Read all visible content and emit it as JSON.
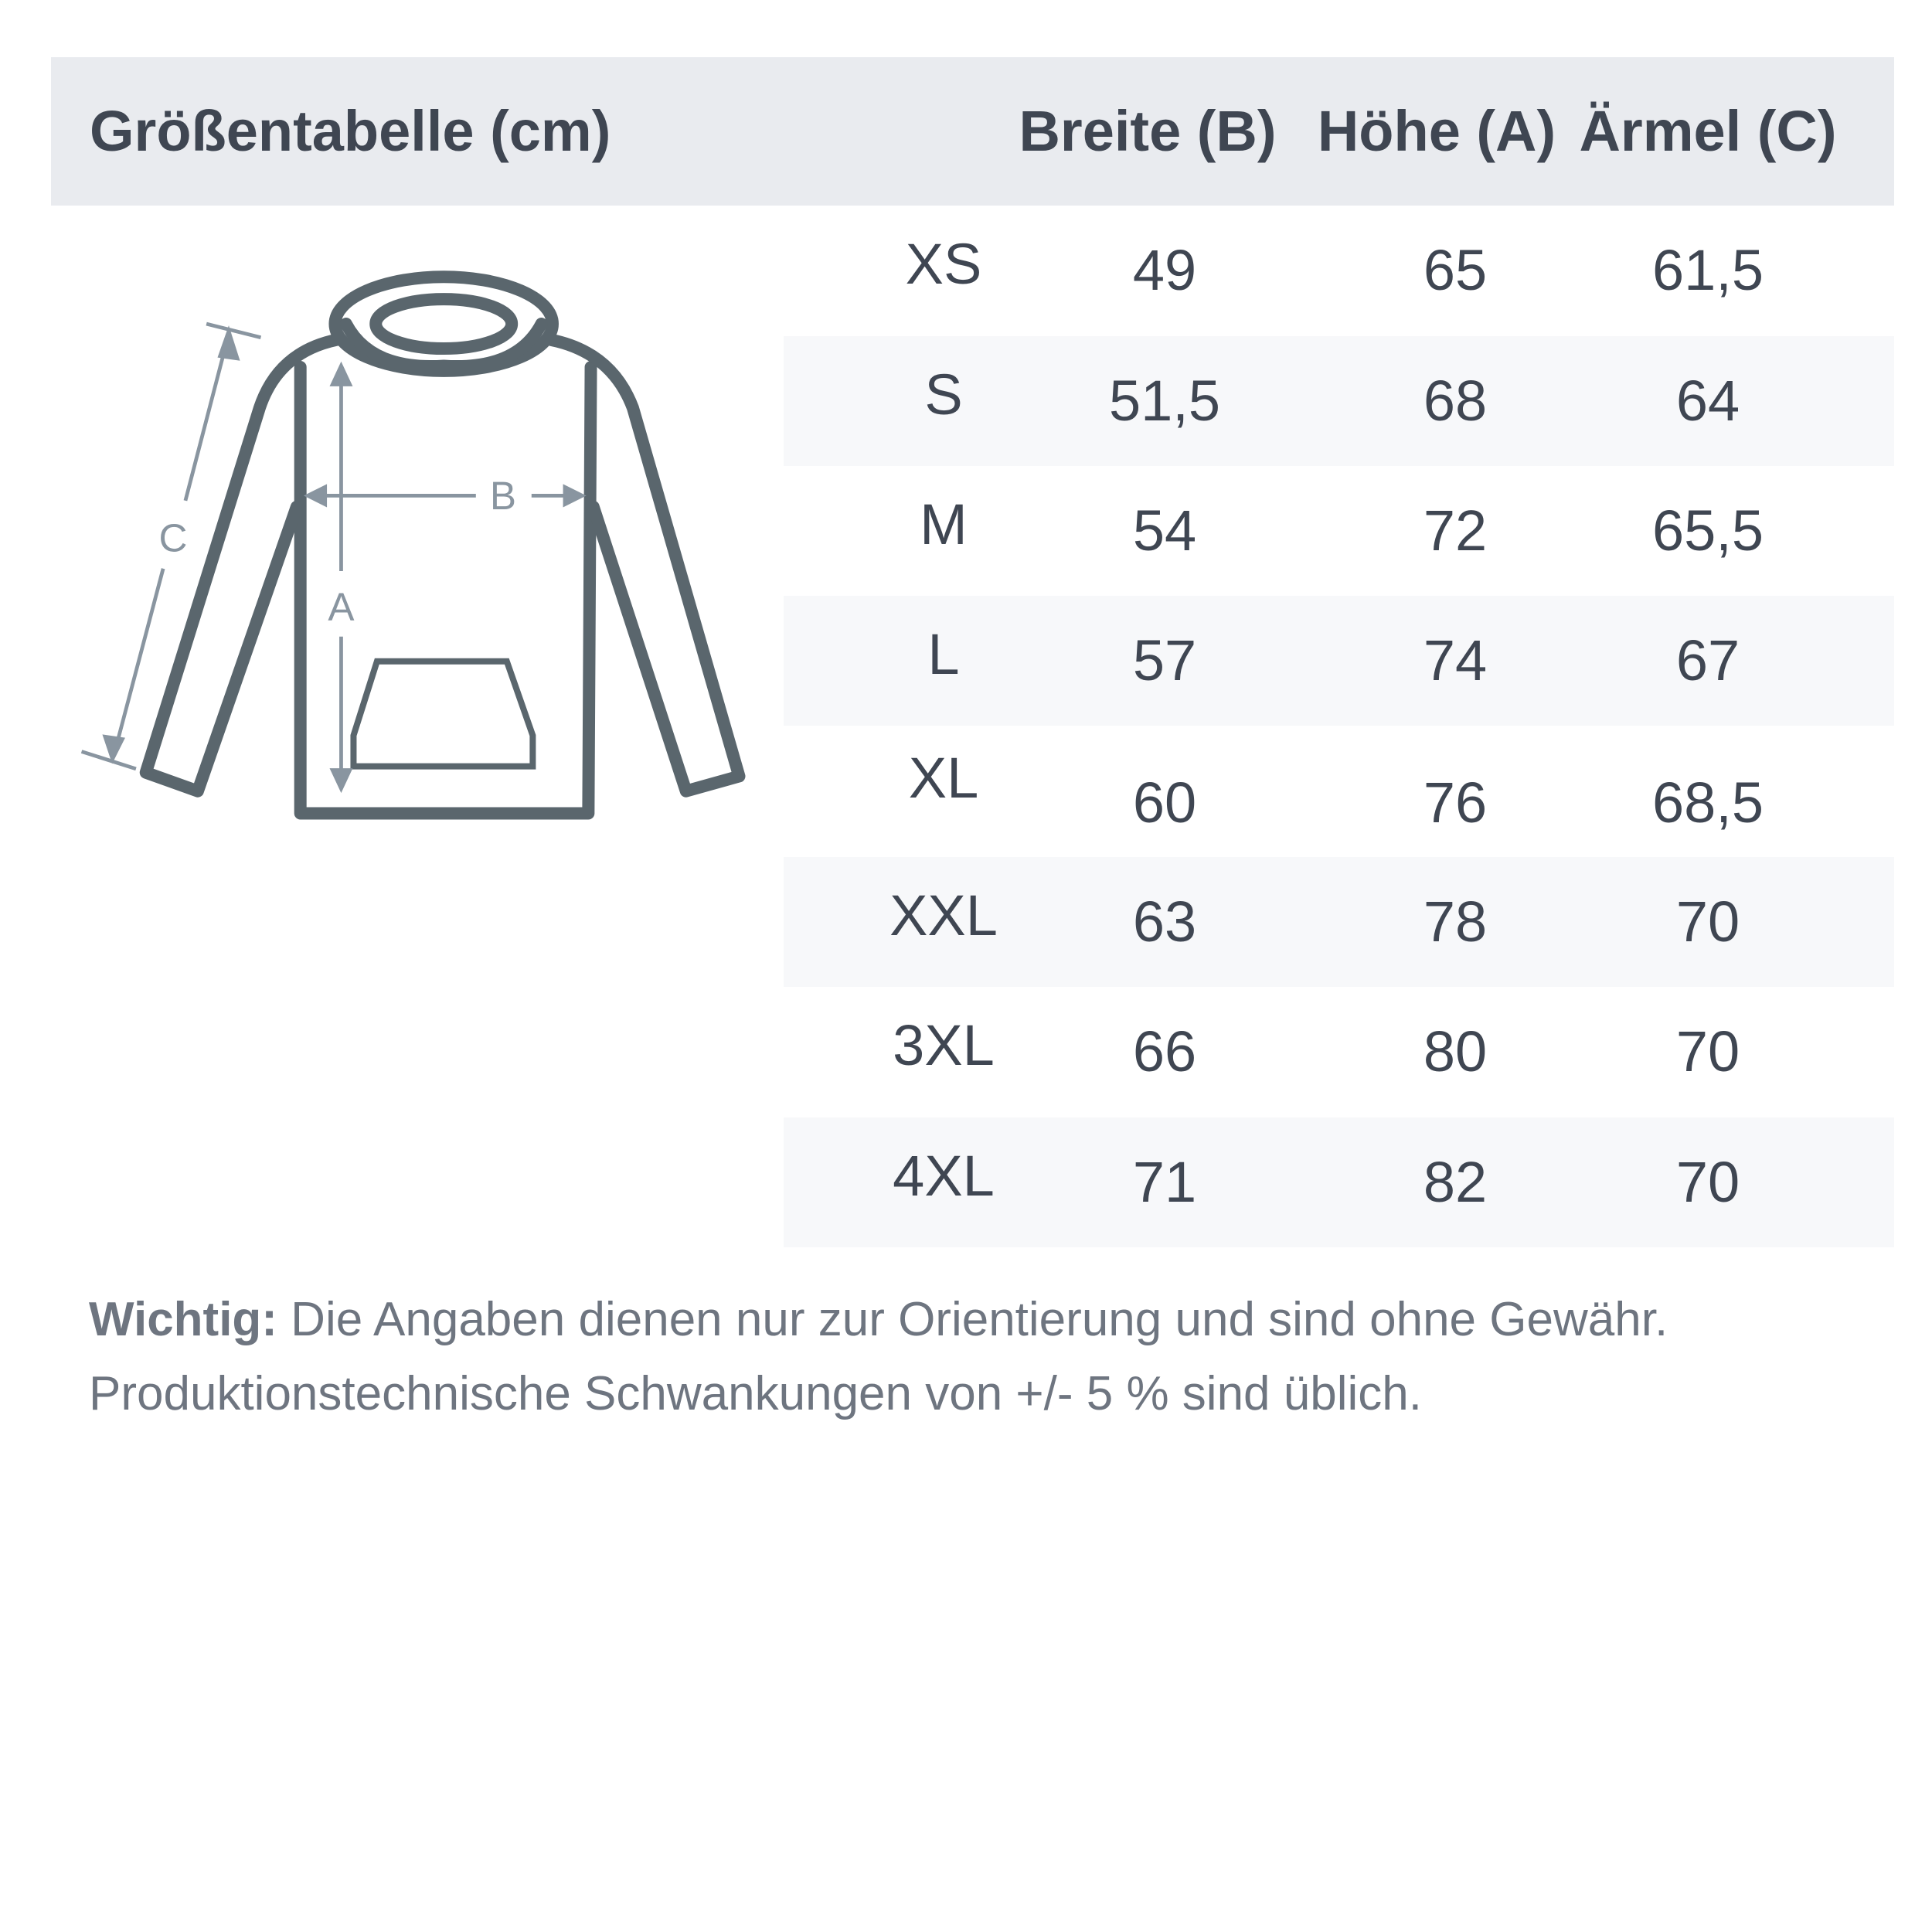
{
  "header": {
    "title": "Größentabelle (cm)",
    "columns": [
      "Breite (B)",
      "Höhe (A)",
      "Ärmel (C)"
    ]
  },
  "diagram": {
    "labels": {
      "a": "A",
      "b": "B",
      "c": "C"
    }
  },
  "rows": [
    {
      "size": "XS",
      "breite": "49",
      "hoehe": "65",
      "aermel": "61,5"
    },
    {
      "size": "S",
      "breite": "51,5",
      "hoehe": "68",
      "aermel": "64"
    },
    {
      "size": "M",
      "breite": "54",
      "hoehe": "72",
      "aermel": "65,5"
    },
    {
      "size": "L",
      "breite": "57",
      "hoehe": "74",
      "aermel": "67"
    },
    {
      "size": "XL",
      "breite": "60",
      "hoehe": "76",
      "aermel": "68,5"
    },
    {
      "size": "XXL",
      "breite": "63",
      "hoehe": "78",
      "aermel": "70"
    },
    {
      "size": "3XL",
      "breite": "66",
      "hoehe": "80",
      "aermel": "70"
    },
    {
      "size": "4XL",
      "breite": "71",
      "hoehe": "82",
      "aermel": "70"
    }
  ],
  "note": {
    "label": "Wichtig:",
    "line1": " Die Angaben dienen nur zur Orientierung und sind ohne Gewähr.",
    "line2": "Produktionstechnische Schwankungen von +/- 5 % sind üblich."
  },
  "colors": {
    "header_bg": "#e9ebef",
    "alt_row_bg": "#f7f8fa",
    "outline": "#5a666d",
    "measure": "#8995a0"
  }
}
